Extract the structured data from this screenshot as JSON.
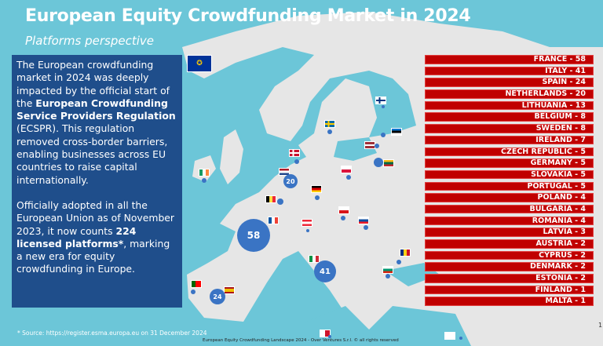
{
  "title": "European Equity Crowdfunding Market in 2024",
  "subtitle": "Platforms perspective",
  "intro": {
    "p1_a": "The European crowdfunding market in 2024 was deeply impacted by the official start of the ",
    "p1_bold": "European Crowdfunding Service Providers Regulation",
    "p1_b": " (ECSPR). This regulation removed cross-border barriers, enabling businesses across EU countries to raise capital internationally.",
    "p2_a": "Officially adopted in all the European Union as of November 2023, it now counts ",
    "p2_bold": "224 licensed platforms*",
    "p2_b": ", marking a new era for equity crowdfunding in Europe."
  },
  "countries": [
    {
      "label": "FRANCE - 58"
    },
    {
      "label": "ITALY - 41"
    },
    {
      "label": "SPAIN - 24"
    },
    {
      "label": "NETHERLANDS - 20"
    },
    {
      "label": "LITHUANIA - 13"
    },
    {
      "label": "BELGIUM - 8"
    },
    {
      "label": "SWEDEN - 8"
    },
    {
      "label": "IRELAND - 7"
    },
    {
      "label": "CZECH REPUBLIC - 5"
    },
    {
      "label": "GERMANY - 5"
    },
    {
      "label": "SLOVAKIA - 5"
    },
    {
      "label": "PORTUGAL - 5"
    },
    {
      "label": "POLAND - 4"
    },
    {
      "label": "BULGARIA - 4"
    },
    {
      "label": "ROMANIA - 4"
    },
    {
      "label": "LATVIA - 3"
    },
    {
      "label": "AUSTRIA - 2"
    },
    {
      "label": "CYPRUS - 2"
    },
    {
      "label": "DENMARK - 2"
    },
    {
      "label": "ESTONIA - 2"
    },
    {
      "label": "FINLAND - 1"
    },
    {
      "label": "MALTA - 1"
    }
  ],
  "bubbles": {
    "france": "58",
    "italy": "41",
    "spain": "24",
    "netherlands": "20"
  },
  "source": "* Source: https://register.esma.europa.eu on 31 December 2024",
  "footer": "European Equity Crowdfunding Landscape 2024 - Over Ventures S.r.l. © all rights reserved",
  "page_number": "1",
  "colors": {
    "background": "#6cc6d8",
    "textbox": "#1f4e8b",
    "bar": "#c00000",
    "bubble": "#3a74c4",
    "land": "#e6e6e6"
  }
}
